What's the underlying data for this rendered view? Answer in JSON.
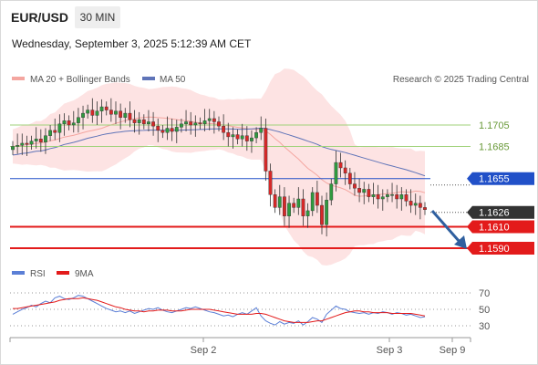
{
  "header": {
    "pair": "EUR/USD",
    "timeframe": "30 MIN",
    "datetime": "Wednesday, September 3, 2025 5:12:39 AM CET"
  },
  "legend": {
    "ma20_label": "MA 20 + Bollinger Bands",
    "ma50_label": "MA 50",
    "credit": "Research © 2025 Trading Central",
    "rsi_label": "RSI",
    "rsi_ma_label": "9MA"
  },
  "colors": {
    "ma20": "#f4a6a0",
    "bollinger_fill": "#fde0e0",
    "ma50": "#5f74b8",
    "support": "#e31b1b",
    "resistance_blue": "#2150c8",
    "resistance_green": "#9fd27a",
    "arrow": "#2f5f9f",
    "current_price_tag": "#333333",
    "rsi": "#5b7fd6",
    "rsi_ma": "#e31b1b"
  },
  "chart_data": {
    "type": "candlestick",
    "x_ticks": [
      "Sep 2",
      "Sep 3",
      "Sep 9"
    ],
    "y_range": [
      1.157,
      1.173
    ],
    "levels": [
      {
        "value": 1.1705,
        "label": "1.1705",
        "kind": "resistance-green"
      },
      {
        "value": 1.1685,
        "label": "1.1685",
        "kind": "resistance-green"
      },
      {
        "value": 1.1655,
        "label": "1.1655",
        "kind": "resistance-blue"
      },
      {
        "value": 1.1626,
        "label": "1.1626",
        "kind": "current"
      },
      {
        "value": 1.161,
        "label": "1.1610",
        "kind": "support"
      },
      {
        "value": 1.159,
        "label": "1.1590",
        "kind": "support"
      }
    ],
    "closes": [
      1.1685,
      1.1686,
      1.1688,
      1.1687,
      1.169,
      1.1692,
      1.1689,
      1.1695,
      1.17,
      1.1698,
      1.1706,
      1.1709,
      1.1705,
      1.1707,
      1.1712,
      1.1716,
      1.1719,
      1.1714,
      1.1718,
      1.1722,
      1.1719,
      1.1715,
      1.1718,
      1.1712,
      1.1716,
      1.171,
      1.1707,
      1.171,
      1.1706,
      1.1708,
      1.1704,
      1.17,
      1.1698,
      1.1702,
      1.1699,
      1.1703,
      1.1706,
      1.1708,
      1.1705,
      1.1707,
      1.1706,
      1.1709,
      1.1711,
      1.1708,
      1.1704,
      1.1698,
      1.1694,
      1.1696,
      1.1692,
      1.1695,
      1.169,
      1.1693,
      1.1698,
      1.1702,
      1.1662,
      1.164,
      1.1628,
      1.1638,
      1.162,
      1.1632,
      1.1628,
      1.1636,
      1.162,
      1.1625,
      1.1642,
      1.163,
      1.1612,
      1.1635,
      1.165,
      1.167,
      1.1665,
      1.166,
      1.165,
      1.1646,
      1.1642,
      1.1645,
      1.1638,
      1.164,
      1.1636,
      1.1638,
      1.164,
      1.164,
      1.1636,
      1.164,
      1.1634,
      1.163,
      1.1632,
      1.1628,
      1.1626
    ],
    "rsi": [
      44,
      47,
      50,
      52,
      55,
      53,
      57,
      60,
      58,
      64,
      66,
      63,
      62,
      64,
      67,
      66,
      63,
      60,
      57,
      54,
      51,
      49,
      47,
      48,
      46,
      48,
      45,
      47,
      49,
      51,
      50,
      52,
      49,
      47,
      46,
      48,
      50,
      52,
      51,
      53,
      51,
      49,
      47,
      46,
      44,
      42,
      43,
      41,
      44,
      46,
      44,
      48,
      52,
      42,
      36,
      33,
      31,
      35,
      32,
      34,
      33,
      36,
      31,
      35,
      40,
      38,
      34,
      44,
      49,
      54,
      51,
      50,
      47,
      46,
      45,
      46,
      44,
      46,
      45,
      47,
      46,
      44,
      46,
      45,
      43,
      44,
      42,
      40,
      41
    ],
    "rsi_ma": [
      51,
      51,
      52,
      53,
      54,
      55,
      56,
      57,
      58,
      59,
      61,
      62,
      63,
      63,
      63,
      64,
      63,
      62,
      61,
      59,
      57,
      55,
      53,
      52,
      50,
      49,
      48,
      48,
      47,
      48,
      48,
      49,
      49,
      49,
      48,
      48,
      48,
      49,
      50,
      50,
      50,
      50,
      50,
      49,
      48,
      47,
      46,
      45,
      44,
      44,
      44,
      44,
      45,
      45,
      44,
      42,
      40,
      38,
      36,
      35,
      34,
      34,
      34,
      34,
      35,
      36,
      36,
      38,
      40,
      42,
      44,
      46,
      47,
      48,
      48,
      47,
      47,
      46,
      46,
      46,
      46,
      45,
      45,
      45,
      45,
      45,
      44,
      43,
      42
    ],
    "rsi_ticks": [
      "70",
      "50",
      "30"
    ]
  }
}
